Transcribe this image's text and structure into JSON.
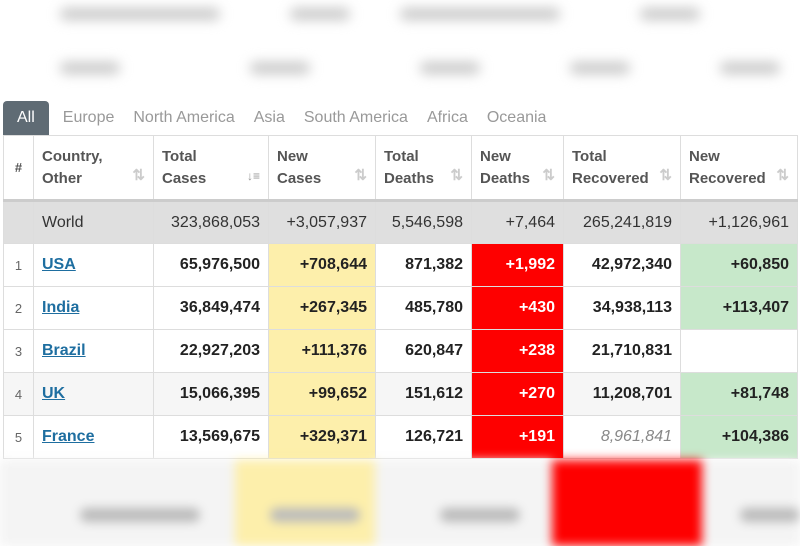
{
  "tabs": [
    "All",
    "Europe",
    "North America",
    "Asia",
    "South America",
    "Africa",
    "Oceania"
  ],
  "headers": [
    {
      "l1": "#",
      "l2": ""
    },
    {
      "l1": "Country,",
      "l2": "Other"
    },
    {
      "l1": "Total",
      "l2": "Cases"
    },
    {
      "l1": "New",
      "l2": "Cases"
    },
    {
      "l1": "Total",
      "l2": "Deaths"
    },
    {
      "l1": "New",
      "l2": "Deaths"
    },
    {
      "l1": "Total",
      "l2": "Recovered"
    },
    {
      "l1": "New",
      "l2": "Recovered"
    }
  ],
  "world": {
    "name": "World",
    "total_cases": "323,868,053",
    "new_cases": "+3,057,937",
    "total_deaths": "5,546,598",
    "new_deaths": "+7,464",
    "total_recovered": "265,241,819",
    "new_recovered": "+1,126,961"
  },
  "rows": [
    {
      "idx": "1",
      "name": "USA",
      "total_cases": "65,976,500",
      "new_cases": "+708,644",
      "total_deaths": "871,382",
      "new_deaths": "+1,992",
      "total_recovered": "42,972,340",
      "new_recovered": "+60,850"
    },
    {
      "idx": "2",
      "name": "India",
      "total_cases": "36,849,474",
      "new_cases": "+267,345",
      "total_deaths": "485,780",
      "new_deaths": "+430",
      "total_recovered": "34,938,113",
      "new_recovered": "+113,407"
    },
    {
      "idx": "3",
      "name": "Brazil",
      "total_cases": "22,927,203",
      "new_cases": "+111,376",
      "total_deaths": "620,847",
      "new_deaths": "+238",
      "total_recovered": "21,710,831",
      "new_recovered": ""
    },
    {
      "idx": "4",
      "name": "UK",
      "total_cases": "15,066,395",
      "new_cases": "+99,652",
      "total_deaths": "151,612",
      "new_deaths": "+270",
      "total_recovered": "11,208,701",
      "new_recovered": "+81,748"
    },
    {
      "idx": "5",
      "name": "France",
      "total_cases": "13,569,675",
      "new_cases": "+329,371",
      "total_deaths": "126,721",
      "new_deaths": "+191",
      "total_recovered": "8,961,841",
      "new_recovered": "+104,386"
    }
  ],
  "colors": {
    "tab_active": "#5f6b74",
    "new_cases": "#fdefab",
    "new_deaths": "#fe0000",
    "new_recovered": "#c7e8ca",
    "link": "#1e6ea0"
  }
}
